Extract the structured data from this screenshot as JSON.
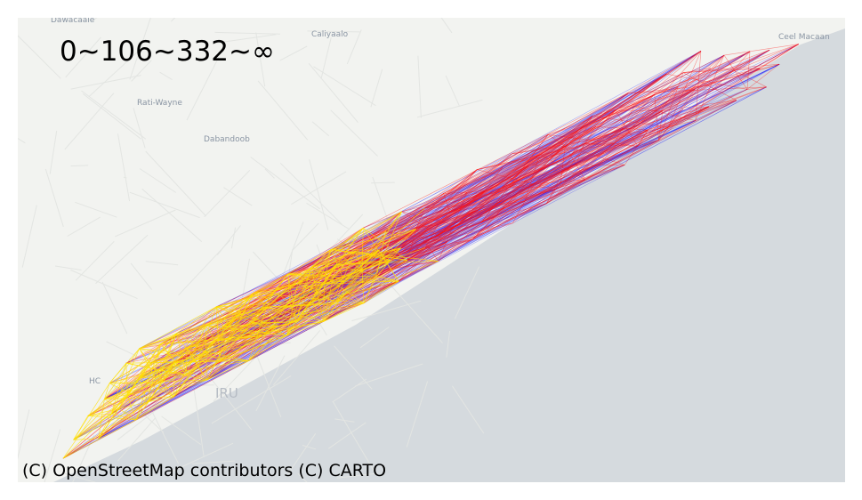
{
  "legend": {
    "text": "0~106~332~∞"
  },
  "attribution": "(C) OpenStreetMap contributors (C) CARTO",
  "places": {
    "dawacaale": "Dawacaale",
    "caliyaalo": "Caliyaalo",
    "rati_wayne": "Rati-Wayne",
    "dabandoob": "Dabandoob",
    "ceel_macaan": "Ceel Macaan",
    "hc": "HC",
    "iru": "IRU"
  },
  "colors": {
    "land": "#f2f3f0",
    "sea": "#d5dade",
    "band_low": "#ffe000",
    "band_mid": "#ff1010",
    "band_high": "#1a1aff"
  }
}
